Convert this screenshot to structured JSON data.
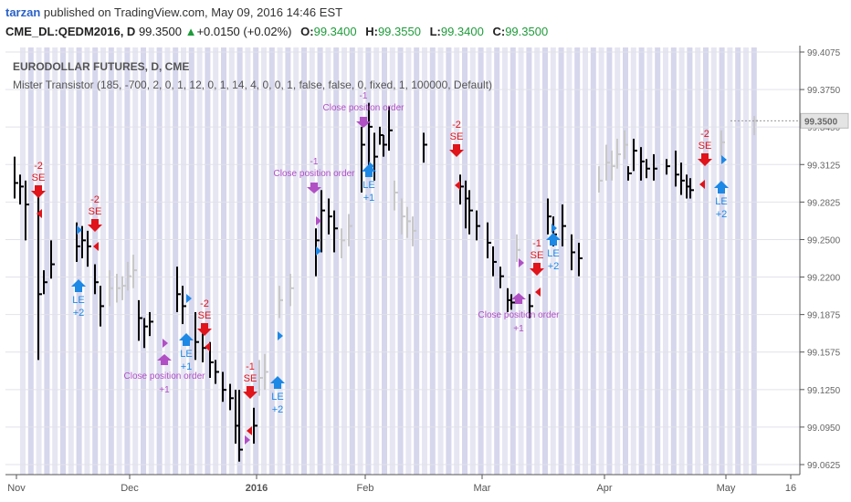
{
  "header": {
    "user": "tarzan",
    "published": "published on TradingView.com, May 09, 2016 14:46 EST",
    "symbol": "CME_DL:QEDM2016, D",
    "last": "99.3500",
    "change": "+0.0150 (+0.02%)",
    "open_label": "O:",
    "open": "99.3400",
    "high_label": "H:",
    "high": "99.3550",
    "low_label": "L:",
    "low": "99.3400",
    "close_label": "C:",
    "close": "99.3500"
  },
  "legend": {
    "title": "EURODOLLAR FUTURES, D, CME",
    "indicator": "Mister Transistor (185, -700, 2, 0, 1, 12, 0, 1, 14, 4, 0, 0, 1, false, false, 0, fixed, 1, 100000, Default)"
  },
  "colors": {
    "bar": "#000000",
    "ghost": "#c8c8c8",
    "band": "#d6d6ec",
    "band_alt": "#e6e6f3",
    "le": "#1e88e5",
    "se": "#e0141b",
    "close": "#b14fc5",
    "last_box": "#e4e4e4"
  },
  "chart_data": {
    "type": "ohlc",
    "ylim": [
      99.05,
      99.41
    ],
    "ytick_labels": [
      "99.4075",
      "99.3750",
      "99.3450",
      "99.3125",
      "99.2825",
      "99.2500",
      "99.2200",
      "99.1875",
      "99.1575",
      "99.1250",
      "99.0950",
      "99.0625"
    ],
    "last_price": "99.3500",
    "xtick_labels": [
      "Nov",
      "Dec",
      "2016",
      "Feb",
      "Mar",
      "Apr",
      "May",
      "16"
    ],
    "bars": [
      {
        "h": 99.32,
        "l": 99.285,
        "c": 99.298
      },
      {
        "h": 99.305,
        "l": 99.28,
        "c": 99.295
      },
      {
        "h": 99.3,
        "l": 99.25,
        "c": 99.28
      },
      {
        "h": 99.29,
        "l": 99.15,
        "c": 99.205
      },
      {
        "h": 99.225,
        "l": 99.205,
        "c": 99.215
      },
      {
        "h": 99.25,
        "l": 99.218,
        "c": 99.23
      },
      {
        "h": 99.265,
        "l": 99.232,
        "c": 99.245
      },
      {
        "h": 99.262,
        "l": 99.235,
        "c": 99.25
      },
      {
        "h": 99.258,
        "l": 99.228,
        "c": 99.245
      },
      {
        "h": 99.23,
        "l": 99.205,
        "c": 99.215
      },
      {
        "h": 99.212,
        "l": 99.178,
        "c": 99.195
      },
      {
        "h": 99.2,
        "l": 99.166,
        "c": 99.185
      },
      {
        "h": 99.185,
        "l": 99.16,
        "c": 99.178
      },
      {
        "h": 99.19,
        "l": 99.17,
        "c": 99.182
      },
      {
        "h": 99.228,
        "l": 99.19,
        "c": 99.205
      },
      {
        "h": 99.212,
        "l": 99.18,
        "c": 99.195
      },
      {
        "h": 99.19,
        "l": 99.15,
        "c": 99.165
      },
      {
        "h": 99.172,
        "l": 99.148,
        "c": 99.16
      },
      {
        "h": 99.165,
        "l": 99.135,
        "c": 99.148
      },
      {
        "h": 99.15,
        "l": 99.13,
        "c": 99.14
      },
      {
        "h": 99.14,
        "l": 99.115,
        "c": 99.125
      },
      {
        "h": 99.13,
        "l": 99.108,
        "c": 99.118
      },
      {
        "h": 99.125,
        "l": 99.08,
        "c": 99.095
      },
      {
        "h": 99.125,
        "l": 99.065,
        "c": 99.075
      },
      {
        "h": 99.11,
        "l": 99.08,
        "c": 99.095
      },
      {
        "h": 99.26,
        "l": 99.22,
        "c": 99.25
      },
      {
        "h": 99.292,
        "l": 99.24,
        "c": 99.275
      },
      {
        "h": 99.285,
        "l": 99.255,
        "c": 99.27
      },
      {
        "h": 99.275,
        "l": 99.24,
        "c": 99.26
      },
      {
        "h": 99.345,
        "l": 99.29,
        "c": 99.33
      },
      {
        "h": 99.365,
        "l": 99.31,
        "c": 99.345
      },
      {
        "h": 99.34,
        "l": 99.3,
        "c": 99.32
      },
      {
        "h": 99.345,
        "l": 99.33,
        "c": 99.338
      },
      {
        "h": 99.338,
        "l": 99.32,
        "c": 99.33
      },
      {
        "h": 99.362,
        "l": 99.325,
        "c": 99.342
      },
      {
        "h": 99.34,
        "l": 99.315,
        "c": 99.33
      },
      {
        "h": 99.305,
        "l": 99.28,
        "c": 99.295
      },
      {
        "h": 99.3,
        "l": 99.26,
        "c": 99.285
      },
      {
        "h": 99.292,
        "l": 99.255,
        "c": 99.275
      },
      {
        "h": 99.275,
        "l": 99.25,
        "c": 99.262
      },
      {
        "h": 99.265,
        "l": 99.235,
        "c": 99.248
      },
      {
        "h": 99.245,
        "l": 99.22,
        "c": 99.232
      },
      {
        "h": 99.228,
        "l": 99.21,
        "c": 99.22
      },
      {
        "h": 99.21,
        "l": 99.19,
        "c": 99.2
      },
      {
        "h": 99.205,
        "l": 99.192,
        "c": 99.198
      },
      {
        "h": 99.205,
        "l": 99.185,
        "c": 99.195
      },
      {
        "h": 99.285,
        "l": 99.255,
        "c": 99.27
      },
      {
        "h": 99.27,
        "l": 99.245,
        "c": 99.255
      },
      {
        "h": 99.28,
        "l": 99.245,
        "c": 99.262
      },
      {
        "h": 99.255,
        "l": 99.225,
        "c": 99.24
      },
      {
        "h": 99.248,
        "l": 99.22,
        "c": 99.235
      },
      {
        "h": 99.312,
        "l": 99.3,
        "c": 99.306
      },
      {
        "h": 99.335,
        "l": 99.308,
        "c": 99.325
      },
      {
        "h": 99.328,
        "l": 99.3,
        "c": 99.316
      },
      {
        "h": 99.318,
        "l": 99.302,
        "c": 99.31
      },
      {
        "h": 99.322,
        "l": 99.3,
        "c": 99.31
      },
      {
        "h": 99.318,
        "l": 99.305,
        "c": 99.312
      },
      {
        "h": 99.325,
        "l": 99.295,
        "c": 99.305
      },
      {
        "h": 99.315,
        "l": 99.288,
        "c": 99.3
      },
      {
        "h": 99.305,
        "l": 99.285,
        "c": 99.295
      },
      {
        "h": 99.302,
        "l": 99.285,
        "c": 99.292
      }
    ],
    "ghost_bars": [
      {
        "h": 99.225,
        "l": 99.195,
        "c": 99.21
      },
      {
        "h": 99.222,
        "l": 99.198,
        "c": 99.21
      },
      {
        "h": 99.22,
        "l": 99.2,
        "c": 99.212
      },
      {
        "h": 99.232,
        "l": 99.208,
        "c": 99.22
      },
      {
        "h": 99.238,
        "l": 99.21,
        "c": 99.225
      },
      {
        "h": 99.15,
        "l": 99.12,
        "c": 99.135
      },
      {
        "h": 99.155,
        "l": 99.125,
        "c": 99.14
      },
      {
        "h": 99.212,
        "l": 99.185,
        "c": 99.2
      },
      {
        "h": 99.222,
        "l": 99.195,
        "c": 99.21
      },
      {
        "h": 99.26,
        "l": 99.235,
        "c": 99.25
      },
      {
        "h": 99.272,
        "l": 99.245,
        "c": 99.262
      },
      {
        "h": 99.3,
        "l": 99.275,
        "c": 99.29
      },
      {
        "h": 99.285,
        "l": 99.255,
        "c": 99.27
      },
      {
        "h": 99.278,
        "l": 99.252,
        "c": 99.266
      },
      {
        "h": 99.27,
        "l": 99.245,
        "c": 99.258
      },
      {
        "h": 99.255,
        "l": 99.232,
        "c": 99.242
      },
      {
        "h": 99.312,
        "l": 99.29,
        "c": 99.3
      },
      {
        "h": 99.33,
        "l": 99.3,
        "c": 99.315
      },
      {
        "h": 99.325,
        "l": 99.3,
        "c": 99.312
      },
      {
        "h": 99.335,
        "l": 99.31,
        "c": 99.322
      },
      {
        "h": 99.342,
        "l": 99.318,
        "c": 99.33
      },
      {
        "h": 99.342,
        "l": 99.32,
        "c": 99.332
      },
      {
        "h": 99.354,
        "l": 99.338,
        "c": 99.35
      }
    ],
    "signals": [
      {
        "kind": "SE",
        "qty": "-2",
        "label": "SE"
      },
      {
        "kind": "SE",
        "qty": "-2",
        "label": "SE"
      },
      {
        "kind": "LE",
        "qty": "+2",
        "label": "LE"
      },
      {
        "kind": "CLOSE",
        "qty": "+1",
        "label": "Close position order"
      },
      {
        "kind": "LE",
        "qty": "+1",
        "label": "LE"
      },
      {
        "kind": "SE",
        "qty": "-2",
        "label": "SE"
      },
      {
        "kind": "SE",
        "qty": "-1",
        "label": "SE"
      },
      {
        "kind": "LE",
        "qty": "+2",
        "label": "LE"
      },
      {
        "kind": "CLOSE",
        "qty": "-1",
        "label": "Close position order"
      },
      {
        "kind": "LE",
        "qty": "+1",
        "label": "LE"
      },
      {
        "kind": "CLOSE",
        "qty": "-1",
        "label": "Close position order"
      },
      {
        "kind": "SE",
        "qty": "-2",
        "label": "SE"
      },
      {
        "kind": "SE",
        "qty": "-1",
        "label": "SE"
      },
      {
        "kind": "CLOSE",
        "qty": "+1",
        "label": "Close position order"
      },
      {
        "kind": "LE",
        "qty": "+2",
        "label": "LE"
      },
      {
        "kind": "SE",
        "qty": "-2",
        "label": "SE"
      },
      {
        "kind": "LE",
        "qty": "+2",
        "label": "LE"
      }
    ]
  }
}
